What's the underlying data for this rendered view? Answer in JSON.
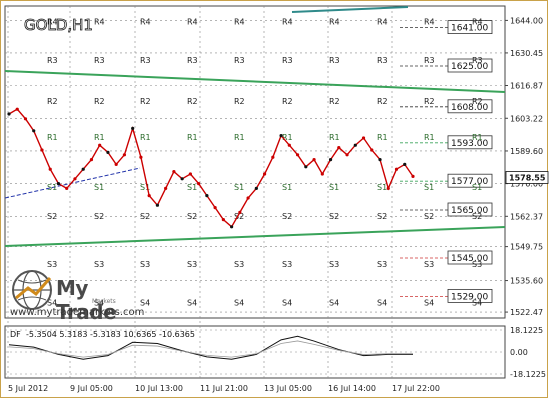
{
  "chart_data": {
    "type": "line",
    "title": "GOLD,H1",
    "current_price": "1578.55",
    "y_ticks": [
      "1644.00",
      "1630.45",
      "1616.87",
      "1603.22",
      "1589.60",
      "1576.00",
      "1562.37",
      "1549.75",
      "1535.60",
      "1522.47"
    ],
    "x_ticks": [
      "5 Jul 2012",
      "9 Jul 05:00",
      "10 Jul 13:00",
      "11 Jul 21:00",
      "13 Jul 05:00",
      "16 Jul 14:00",
      "17 Jul 22:00"
    ],
    "price_levels": [
      "1641.00",
      "1625.00",
      "1608.00",
      "1593.00",
      "1577.00",
      "1565.00",
      "1545.00",
      "1529.00"
    ],
    "level_labels": [
      "R4",
      "R3",
      "R2",
      "R1",
      "S1",
      "S2",
      "S3",
      "S4"
    ],
    "price_series": [
      {
        "x": 0,
        "y": 1605
      },
      {
        "x": 1,
        "y": 1607
      },
      {
        "x": 2,
        "y": 1603
      },
      {
        "x": 3,
        "y": 1598
      },
      {
        "x": 4,
        "y": 1590
      },
      {
        "x": 5,
        "y": 1582
      },
      {
        "x": 6,
        "y": 1576
      },
      {
        "x": 7,
        "y": 1574
      },
      {
        "x": 8,
        "y": 1578
      },
      {
        "x": 9,
        "y": 1582
      },
      {
        "x": 10,
        "y": 1586
      },
      {
        "x": 11,
        "y": 1592
      },
      {
        "x": 12,
        "y": 1589
      },
      {
        "x": 13,
        "y": 1584
      },
      {
        "x": 14,
        "y": 1588
      },
      {
        "x": 15,
        "y": 1599
      },
      {
        "x": 16,
        "y": 1587
      },
      {
        "x": 17,
        "y": 1571
      },
      {
        "x": 18,
        "y": 1567
      },
      {
        "x": 19,
        "y": 1574
      },
      {
        "x": 20,
        "y": 1581
      },
      {
        "x": 21,
        "y": 1578
      },
      {
        "x": 22,
        "y": 1580
      },
      {
        "x": 23,
        "y": 1576
      },
      {
        "x": 24,
        "y": 1571
      },
      {
        "x": 25,
        "y": 1566
      },
      {
        "x": 26,
        "y": 1561
      },
      {
        "x": 27,
        "y": 1558
      },
      {
        "x": 28,
        "y": 1564
      },
      {
        "x": 29,
        "y": 1570
      },
      {
        "x": 30,
        "y": 1574
      },
      {
        "x": 31,
        "y": 1580
      },
      {
        "x": 32,
        "y": 1587
      },
      {
        "x": 33,
        "y": 1596
      },
      {
        "x": 34,
        "y": 1592
      },
      {
        "x": 35,
        "y": 1588
      },
      {
        "x": 36,
        "y": 1583
      },
      {
        "x": 37,
        "y": 1586
      },
      {
        "x": 38,
        "y": 1580
      },
      {
        "x": 39,
        "y": 1586
      },
      {
        "x": 40,
        "y": 1591
      },
      {
        "x": 41,
        "y": 1588
      },
      {
        "x": 42,
        "y": 1592
      },
      {
        "x": 43,
        "y": 1595
      },
      {
        "x": 44,
        "y": 1590
      },
      {
        "x": 45,
        "y": 1586
      },
      {
        "x": 46,
        "y": 1574
      },
      {
        "x": 47,
        "y": 1582
      },
      {
        "x": 48,
        "y": 1584
      },
      {
        "x": 49,
        "y": 1579
      }
    ],
    "ylim": [
      1520,
      1650
    ],
    "indicator": {
      "label": "DF",
      "values_text": "-5.3504  5.3183  -5.3183  10.6365  -10.6365",
      "y_ticks": [
        "18.1225",
        "0.00",
        "-18.1225"
      ],
      "ylim": [
        -18.1225,
        18.1225
      ],
      "series": [
        {
          "x": 0,
          "y": 6
        },
        {
          "x": 3,
          "y": 4
        },
        {
          "x": 6,
          "y": -2
        },
        {
          "x": 9,
          "y": -6
        },
        {
          "x": 12,
          "y": -3
        },
        {
          "x": 15,
          "y": 8
        },
        {
          "x": 18,
          "y": 7
        },
        {
          "x": 21,
          "y": 1
        },
        {
          "x": 24,
          "y": -4
        },
        {
          "x": 27,
          "y": -6
        },
        {
          "x": 30,
          "y": -2
        },
        {
          "x": 33,
          "y": 10
        },
        {
          "x": 35,
          "y": 13
        },
        {
          "x": 37,
          "y": 9
        },
        {
          "x": 40,
          "y": 2
        },
        {
          "x": 43,
          "y": -3
        },
        {
          "x": 46,
          "y": -2
        },
        {
          "x": 49,
          "y": -2
        }
      ]
    }
  },
  "branding": {
    "logo_text": "My Trade",
    "logo_sub": "Markets",
    "site": "www.mytrademarkets.com"
  },
  "colors": {
    "price_line": "#cc0000",
    "trend_channel": "#3aa35a",
    "grid": "#888888",
    "level_box": "#333333"
  }
}
